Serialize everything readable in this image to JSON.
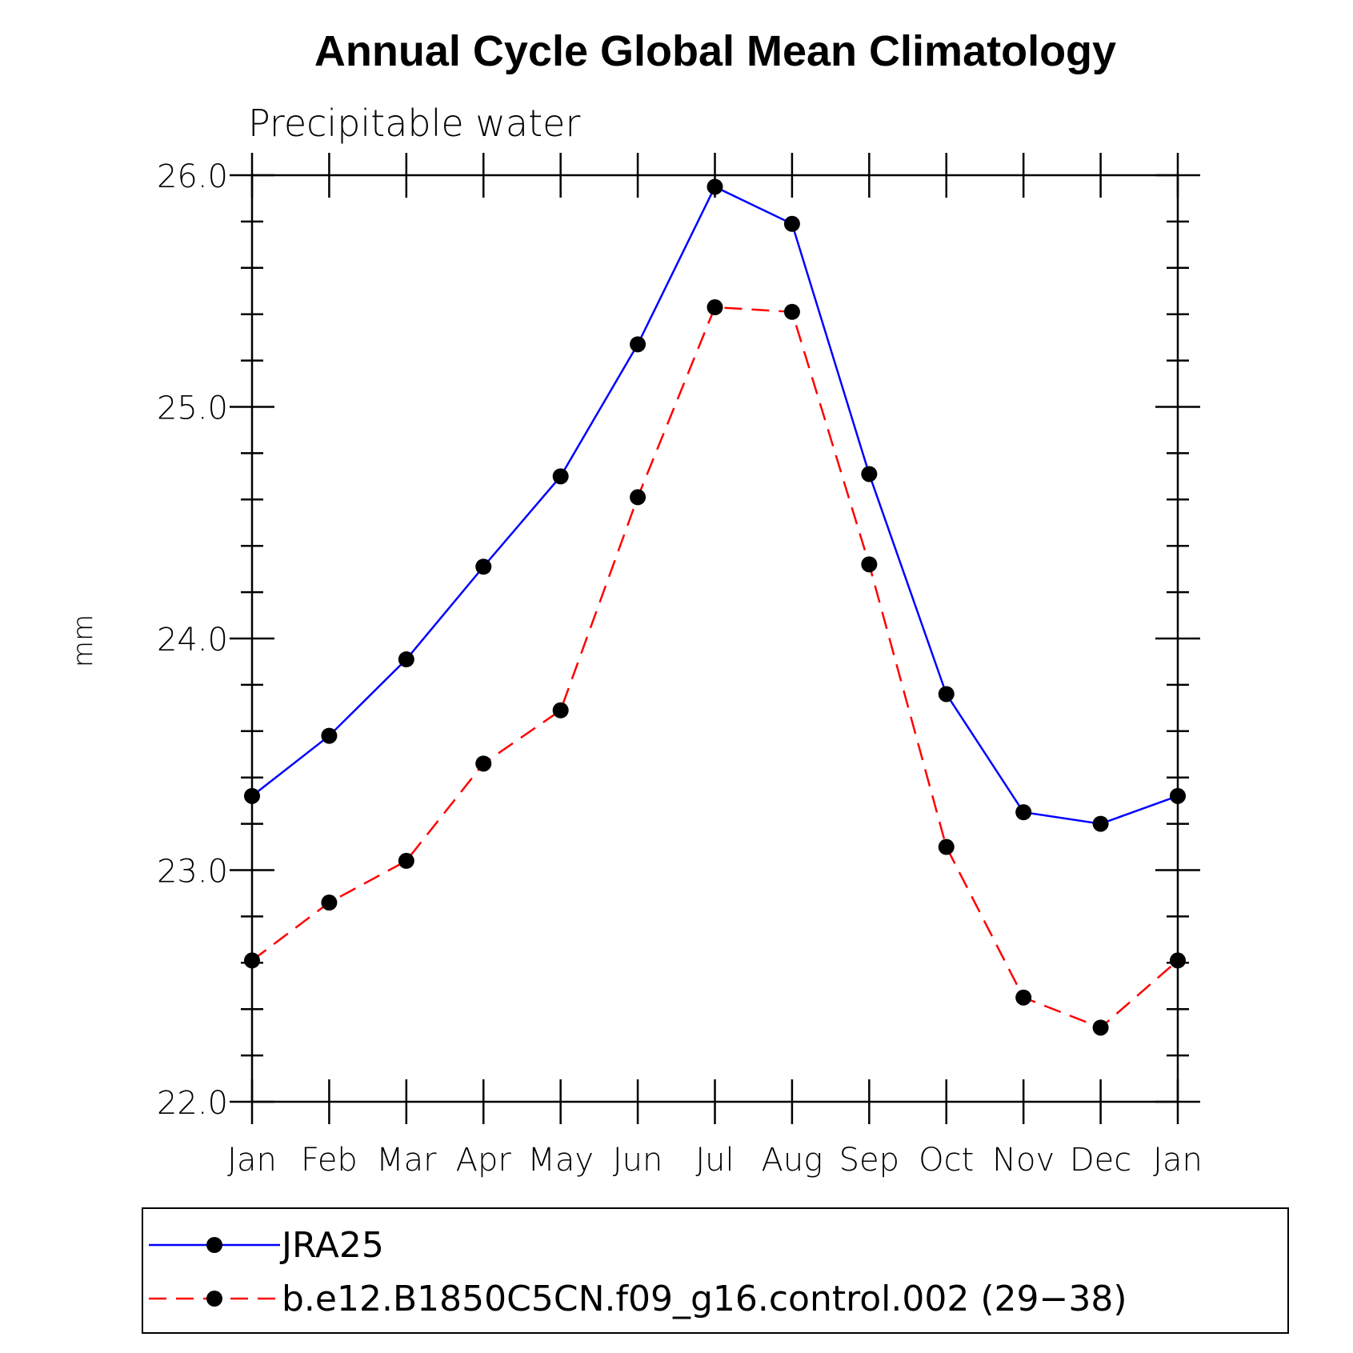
{
  "chart_data": {
    "type": "line",
    "title": "Annual Cycle Global Mean Climatology",
    "subtitle": "Precipitable water",
    "ylabel": "mm",
    "xlabel": "",
    "categories": [
      "Jan",
      "Feb",
      "Mar",
      "Apr",
      "May",
      "Jun",
      "Jul",
      "Aug",
      "Sep",
      "Oct",
      "Nov",
      "Dec",
      "Jan"
    ],
    "ylim": [
      22.0,
      26.0
    ],
    "yticks": [
      "22.0",
      "23.0",
      "24.0",
      "25.0",
      "26.0"
    ],
    "series": [
      {
        "name": "JRA25",
        "color": "#0000ff",
        "dash": "solid",
        "values": [
          23.32,
          23.58,
          23.91,
          24.31,
          24.7,
          25.27,
          25.95,
          25.79,
          24.71,
          23.76,
          23.25,
          23.2,
          23.32
        ]
      },
      {
        "name": "b.e12.B1850C5CN.f09_g16.control.002 (29−38)",
        "color": "#ff0000",
        "dash": "dashed",
        "values": [
          22.61,
          22.86,
          23.04,
          23.46,
          23.69,
          24.61,
          25.43,
          25.41,
          24.32,
          23.1,
          22.45,
          22.32,
          22.61
        ]
      }
    ],
    "legend_position": "bottom",
    "marker": "filled-circle"
  }
}
